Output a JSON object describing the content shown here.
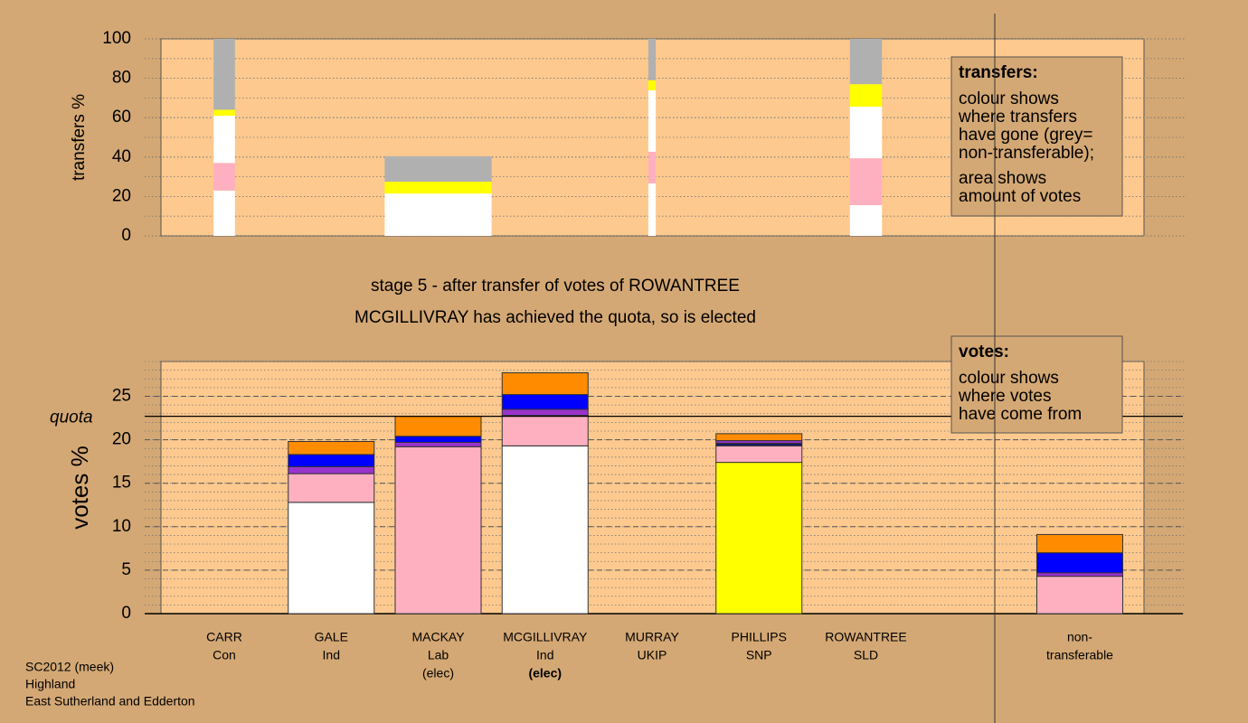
{
  "stage_title": "stage 5 - after transfer of votes of ROWANTREE",
  "stage_note": "MCGILLIVRAY has achieved the quota, so is elected",
  "footer": [
    "SC2012 (meek)",
    "Highland",
    "East Sutherland and Edderton"
  ],
  "chart_data": [
    {
      "type": "bar",
      "stacked": true,
      "ylabel": "transfers %",
      "ylim": [
        0,
        100
      ],
      "yticks": [
        0,
        20,
        40,
        60,
        80,
        100
      ],
      "minor_grid_step": 10,
      "stacks": [
        {
          "size": 0.2,
          "colors": [
            "#ffffff",
            "#ffb0c0",
            "#ffffff",
            "#ffff00",
            "#b0b0b0"
          ],
          "values": [
            23,
            14,
            24,
            3,
            36
          ]
        },
        null,
        {
          "size": 1.0,
          "colors": [
            "#ffffff",
            "#ffff00",
            "#b0b0b0"
          ],
          "values": [
            21.5,
            6,
            12.9
          ]
        },
        null,
        {
          "size": 0.07,
          "colors": [
            "#ffffff",
            "#ffb0c0",
            "#ffffff",
            "#ffff00",
            "#b0b0b0"
          ],
          "values": [
            26.6,
            16.1,
            31.2,
            5.1,
            21
          ]
        },
        null,
        {
          "size": 0.3,
          "colors": [
            "#ffffff",
            "#ffb0c0",
            "#ffffff",
            "#ffff00",
            "#b0b0b0"
          ],
          "values": [
            15.6,
            23.8,
            26.2,
            11.4,
            23
          ]
        },
        null,
        null
      ],
      "legend": {
        "title": "transfers:",
        "paragraphs": [
          [
            "colour shows",
            "where transfers",
            "have gone (grey=",
            "non-transferable);"
          ],
          [
            "area shows",
            "amount of votes"
          ]
        ]
      }
    },
    {
      "type": "bar",
      "stacked": true,
      "ylabel": "votes %",
      "ylim": [
        0,
        29
      ],
      "yticks": [
        0,
        5,
        10,
        15,
        20,
        25
      ],
      "minor_grid_step": 1,
      "quota": 22.7,
      "quota_label": "quota",
      "highlight": 3,
      "categories": [
        [
          "CARR",
          "Con"
        ],
        [
          "GALE",
          "Ind"
        ],
        [
          "MACKAY",
          "Lab",
          "(elec)"
        ],
        [
          "MCGILLIVRAY",
          "Ind",
          "(elec)"
        ],
        [
          "MURRAY",
          "UKIP"
        ],
        [
          "PHILLIPS",
          "SNP"
        ],
        [
          "ROWANTREE",
          "SLD"
        ],
        null,
        [
          "non-",
          "transferable"
        ]
      ],
      "stacks": [
        {
          "colors": [
            "#000000"
          ],
          "values": [
            0
          ]
        },
        {
          "colors": [
            "#ffffff",
            "#ffb0c0",
            "#9933cc",
            "#0000ff",
            "#ff8c00"
          ],
          "values": [
            12.8,
            3.3,
            0.8,
            1.4,
            1.5
          ]
        },
        {
          "colors": [
            "#ffb0c0",
            "#9933cc",
            "#0000ff",
            "#ff8c00"
          ],
          "values": [
            19.2,
            0.5,
            0.7,
            2.3
          ]
        },
        {
          "colors": [
            "#ffffff",
            "#ffb0c0",
            "#9933cc",
            "#0000ff",
            "#ff8c00"
          ],
          "values": [
            19.3,
            3.5,
            0.7,
            1.7,
            2.5
          ]
        },
        {
          "colors": [
            "#000000"
          ],
          "values": [
            0
          ]
        },
        {
          "colors": [
            "#ffff00",
            "#ffb0c0",
            "#1a1a66",
            "#9933cc",
            "#ff8c00"
          ],
          "values": [
            17.4,
            1.9,
            0.3,
            0.3,
            0.8
          ]
        },
        {
          "colors": [
            "#000000"
          ],
          "values": [
            0
          ]
        },
        null,
        {
          "colors": [
            "#ffb0c0",
            "#9933cc",
            "#0000ff",
            "#ff8c00"
          ],
          "values": [
            4.3,
            0.4,
            2.3,
            2.1
          ]
        }
      ],
      "legend": {
        "title": "votes:",
        "paragraphs": [
          [
            "colour shows",
            "where votes",
            "have come from"
          ]
        ]
      }
    }
  ]
}
